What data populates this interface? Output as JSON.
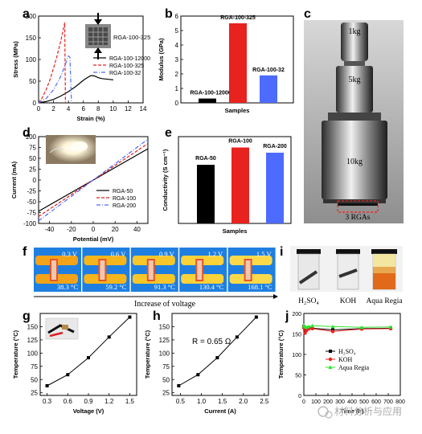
{
  "panels": {
    "a": {
      "letter": "a"
    },
    "b": {
      "letter": "b"
    },
    "c": {
      "letter": "c"
    },
    "d": {
      "letter": "d"
    },
    "e": {
      "letter": "e"
    },
    "f": {
      "letter": "f"
    },
    "g": {
      "letter": "g"
    },
    "h": {
      "letter": "h"
    },
    "i": {
      "letter": "i"
    },
    "j": {
      "letter": "j"
    }
  },
  "colors": {
    "black": "#000000",
    "red": "#e8221f",
    "blue": "#4d6bff",
    "green": "#2ee62e",
    "ir_blue": "#1f7fe0",
    "ir_orange": "#f2a318"
  },
  "panel_c": {
    "labels": [
      "1kg",
      "5kg",
      "10kg"
    ],
    "bottom_label": "3 RGAs"
  },
  "panel_f": {
    "voltages": [
      "0.3 V",
      "0.6 V",
      "0.9 V",
      "1.2 V",
      "1.5 V"
    ],
    "temps": [
      "38.3 °C",
      "59.2 °C",
      "91.3 °C",
      "130.4 °C",
      "168.1 °C"
    ],
    "caption": "Increase of voltage"
  },
  "panel_i": {
    "labels": [
      "H₂SO₄",
      "KOH",
      "Aqua Regia"
    ]
  },
  "watermark": "材料分析与应用",
  "chart_data": [
    {
      "panel": "a",
      "type": "line",
      "xlabel": "Strain (%)",
      "ylabel": "Stress (MPa)",
      "xlim": [
        0,
        14
      ],
      "ylim": [
        0,
        200
      ],
      "xticks": [
        "0",
        "2",
        "4",
        "6",
        "8",
        "10",
        "12",
        "14"
      ],
      "yticks": [
        "0",
        "50",
        "100",
        "150",
        "200"
      ],
      "inset_label": "RGA-100-325",
      "series": [
        {
          "name": "RGA-100-12000",
          "style": "solid",
          "color": "#000000",
          "x": [
            0,
            1,
            2,
            3,
            4,
            5,
            6,
            6.5,
            7,
            7.5,
            8,
            8.5,
            9,
            9.5,
            10
          ],
          "y": [
            0,
            3,
            8,
            16,
            26,
            38,
            52,
            58,
            63,
            62,
            58,
            56,
            55,
            54,
            53
          ]
        },
        {
          "name": "RGA-100-325",
          "style": "dashed",
          "color": "#e8221f",
          "x": [
            0,
            0.5,
            1,
            1.5,
            2,
            2.5,
            3,
            3.3,
            3.5,
            3.6
          ],
          "y": [
            0,
            12,
            30,
            52,
            80,
            110,
            145,
            168,
            185,
            0
          ]
        },
        {
          "name": "RGA-100-32",
          "style": "dashdot",
          "color": "#4d6bff",
          "x": [
            0,
            1,
            2,
            3,
            3.5,
            4,
            4.2,
            4.4
          ],
          "y": [
            0,
            10,
            30,
            62,
            85,
            108,
            105,
            0
          ]
        }
      ]
    },
    {
      "panel": "b",
      "type": "bar",
      "xlabel": "Samples",
      "ylabel": "Modulus (GPa)",
      "ylim": [
        0,
        6
      ],
      "yticks": [
        "0",
        "1",
        "2",
        "3",
        "4",
        "5",
        "6"
      ],
      "categories": [
        "RGA-100-12000",
        "RGA-100-325",
        "RGA-100-32"
      ],
      "values": [
        0.3,
        5.5,
        1.9
      ],
      "colors": [
        "#000000",
        "#e8221f",
        "#4d6bff"
      ]
    },
    {
      "panel": "d",
      "type": "line",
      "xlabel": "Potential (mV)",
      "ylabel": "Current (mA)",
      "xlim": [
        -50,
        50
      ],
      "ylim": [
        -100,
        100
      ],
      "xticks": [
        "-40",
        "-20",
        "0",
        "20",
        "40"
      ],
      "yticks": [
        "-100",
        "-75",
        "-50",
        "-25",
        "0",
        "25",
        "50",
        "75",
        "100"
      ],
      "series": [
        {
          "name": "RGA-50",
          "style": "solid",
          "color": "#000000",
          "x": [
            -50,
            50
          ],
          "y": [
            -72,
            72
          ]
        },
        {
          "name": "RGA-100",
          "style": "dashed",
          "color": "#e8221f",
          "x": [
            -50,
            50
          ],
          "y": [
            -84,
            84
          ]
        },
        {
          "name": "RGA-200",
          "style": "dashdot",
          "color": "#4d6bff",
          "x": [
            -50,
            50
          ],
          "y": [
            -94,
            94
          ]
        }
      ]
    },
    {
      "panel": "e",
      "type": "bar",
      "xlabel": "Samples",
      "ylabel": "Conductivity (S cm⁻¹)",
      "ylim": [
        0,
        200
      ],
      "categories": [
        "RGA-50",
        "RGA-100",
        "RGA-200"
      ],
      "values": [
        135,
        175,
        163
      ],
      "colors": [
        "#000000",
        "#e8221f",
        "#4d6bff"
      ]
    },
    {
      "panel": "g",
      "type": "line",
      "xlabel": "Voltage (V)",
      "ylabel": "Temperature (°C)",
      "xlim": [
        0.2,
        1.6
      ],
      "ylim": [
        20,
        175
      ],
      "xticks": [
        "0.3",
        "0.6",
        "0.9",
        "1.2",
        "1.5"
      ],
      "yticks": [
        "25",
        "50",
        "75",
        "100",
        "125",
        "150"
      ],
      "series": [
        {
          "x": [
            0.3,
            0.6,
            0.9,
            1.2,
            1.5
          ],
          "y": [
            38.3,
            59.2,
            91.3,
            130.4,
            168.1
          ]
        }
      ]
    },
    {
      "panel": "h",
      "type": "line",
      "xlabel": "Current (A)",
      "ylabel": "Temperature (°C)",
      "xlim": [
        0.3,
        2.6
      ],
      "ylim": [
        20,
        175
      ],
      "xticks": [
        "0.5",
        "1.0",
        "1.5",
        "2.0",
        "2.5"
      ],
      "yticks": [
        "25",
        "50",
        "75",
        "100",
        "125",
        "150"
      ],
      "annotation": "R = 0.65 Ω",
      "series": [
        {
          "x": [
            0.46,
            0.92,
            1.38,
            1.85,
            2.31
          ],
          "y": [
            38.3,
            59.2,
            91.3,
            130.4,
            168.1
          ]
        }
      ]
    },
    {
      "panel": "j",
      "type": "line",
      "xlabel": "Time (h)",
      "ylabel": "Temperature (°C)",
      "xlim": [
        0,
        800
      ],
      "ylim": [
        0,
        200
      ],
      "xticks": [
        "0",
        "100",
        "200",
        "300",
        "400",
        "500",
        "600",
        "700",
        "800"
      ],
      "yticks": [
        "0",
        "50",
        "100",
        "150",
        "200"
      ],
      "series": [
        {
          "name": "H₂SO₄",
          "marker": "square",
          "color": "#000000",
          "x": [
            0,
            10,
            20,
            40,
            70,
            240,
            480,
            720
          ],
          "y": [
            168,
            160,
            163,
            165,
            164,
            160,
            163,
            164
          ]
        },
        {
          "name": "KOH",
          "marker": "circle",
          "color": "#e8221f",
          "x": [
            0,
            10,
            20,
            40,
            70,
            240,
            480,
            720
          ],
          "y": [
            165,
            152,
            158,
            162,
            163,
            156,
            162,
            163
          ]
        },
        {
          "name": "Aqua Regia",
          "marker": "triangle",
          "color": "#2ee62e",
          "x": [
            0,
            10,
            20,
            40,
            70,
            240,
            480,
            720
          ],
          "y": [
            170,
            168,
            166,
            168,
            170,
            168,
            166,
            167
          ]
        }
      ]
    }
  ]
}
